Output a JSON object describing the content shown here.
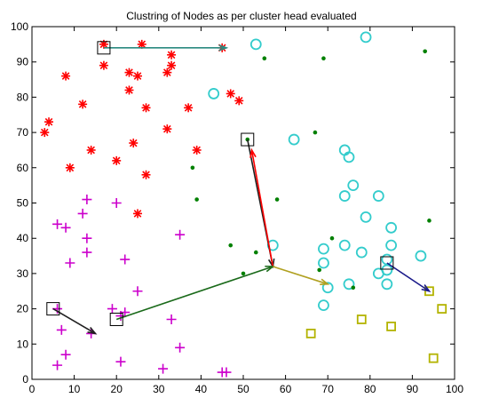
{
  "chart_data": {
    "type": "scatter",
    "title": "Clustring of Nodes as per cluster head evaluated",
    "xlabel": "",
    "ylabel": "",
    "xlim": [
      0,
      100
    ],
    "ylim": [
      0,
      100
    ],
    "xticks": [
      0,
      10,
      20,
      30,
      40,
      50,
      60,
      70,
      80,
      90,
      100
    ],
    "yticks": [
      0,
      10,
      20,
      30,
      40,
      50,
      60,
      70,
      80,
      90,
      100
    ],
    "grid": false,
    "colors": {
      "red": "#ff0000",
      "magenta": "#cc00cc",
      "cyan": "#33cccc",
      "olive": "#b3b300",
      "green": "#008000",
      "head_box": "#000000",
      "arrow_teal": "#2a8a80",
      "arrow_black": "#202020",
      "arrow_navy": "#1a1a8a",
      "arrow_green": "#1a6a1a",
      "arrow_olive": "#b0a020"
    },
    "series": [
      {
        "marker": "asterisk",
        "color": "red",
        "x": [
          17,
          26,
          33,
          45,
          8,
          17,
          33,
          23,
          25,
          32,
          23,
          27,
          47,
          49,
          12,
          37,
          4,
          3,
          14,
          32,
          24,
          20,
          39,
          9,
          27,
          25
        ],
        "y": [
          95,
          95,
          92,
          94,
          86,
          89,
          89,
          87,
          86,
          87,
          82,
          77,
          81,
          79,
          78,
          77,
          73,
          70,
          65,
          71,
          67,
          62,
          65,
          60,
          58,
          47
        ]
      },
      {
        "marker": "plus",
        "color": "magenta",
        "x": [
          6,
          8,
          13,
          12,
          20,
          13,
          35,
          9,
          13,
          22,
          25,
          6,
          21,
          22,
          19,
          33,
          14,
          7,
          8,
          35,
          21,
          31,
          45,
          46,
          6
        ],
        "y": [
          44,
          43,
          51,
          47,
          50,
          40,
          41,
          33,
          36,
          34,
          25,
          20,
          18,
          19,
          20,
          17,
          13,
          14,
          7,
          9,
          5,
          3,
          2,
          2,
          4
        ]
      },
      {
        "marker": "circle",
        "color": "cyan",
        "x": [
          53,
          79,
          43,
          62,
          74,
          75,
          76,
          74,
          82,
          79,
          85,
          57,
          69,
          74,
          85,
          84,
          69,
          78,
          92,
          84,
          82,
          70,
          75,
          84,
          69
        ],
        "y": [
          95,
          97,
          81,
          68,
          65,
          63,
          55,
          52,
          52,
          46,
          43,
          38,
          37,
          38,
          38,
          34,
          33,
          36,
          35,
          31,
          30,
          26,
          27,
          27,
          21
        ]
      },
      {
        "marker": "square",
        "color": "olive",
        "x": [
          94,
          97,
          78,
          85,
          66,
          95
        ],
        "y": [
          25,
          20,
          17,
          15,
          13,
          6
        ]
      },
      {
        "marker": "dot",
        "color": "green",
        "x": [
          55,
          69,
          93,
          51,
          67,
          38,
          39,
          58,
          94,
          71,
          47,
          53,
          50,
          68,
          76
        ],
        "y": [
          91,
          91,
          93,
          68,
          70,
          60,
          51,
          51,
          45,
          40,
          38,
          36,
          30,
          31,
          26
        ]
      }
    ],
    "cluster_heads": [
      {
        "x": 17,
        "y": 94
      },
      {
        "x": 51,
        "y": 68
      },
      {
        "x": 5,
        "y": 20
      },
      {
        "x": 20,
        "y": 17
      },
      {
        "x": 84,
        "y": 33
      }
    ],
    "arrows": [
      {
        "from": [
          17,
          94
        ],
        "to": [
          46,
          94
        ],
        "color": "arrow_teal"
      },
      {
        "from": [
          51,
          68
        ],
        "to": [
          57,
          32
        ],
        "color": "arrow_black"
      },
      {
        "from": [
          57,
          32
        ],
        "to": [
          52,
          65
        ],
        "color": "red"
      },
      {
        "from": [
          5,
          20
        ],
        "to": [
          15,
          13
        ],
        "color": "arrow_black"
      },
      {
        "from": [
          20,
          17
        ],
        "to": [
          57,
          32
        ],
        "color": "arrow_green"
      },
      {
        "from": [
          57,
          32
        ],
        "to": [
          70,
          27
        ],
        "color": "arrow_olive"
      },
      {
        "from": [
          84,
          33
        ],
        "to": [
          94,
          25
        ],
        "color": "arrow_navy"
      }
    ]
  }
}
